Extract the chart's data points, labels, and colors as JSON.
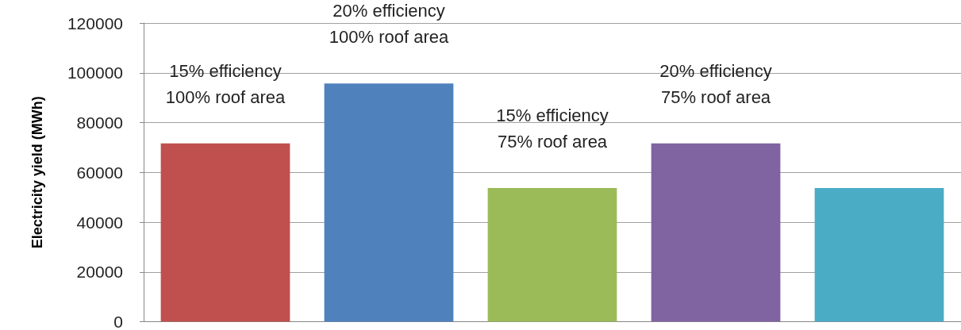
{
  "chart_data": {
    "type": "bar",
    "ylabel": "Electricity yield (MWh)",
    "categories": [
      null,
      null,
      null,
      null,
      null
    ],
    "values": [
      71600,
      95700,
      53700,
      71600,
      53700
    ],
    "colors": [
      "#c0504d",
      "#4f81bd",
      "#9bbb59",
      "#8064a2",
      "#4bacc6"
    ],
    "annotations": [
      {
        "text": "15% efficiency\n100% roof area",
        "y": 71600
      },
      {
        "text": "20% efficiency\n100% roof area",
        "y": 95700
      },
      {
        "text": "15% efficiency\n75% roof area",
        "y": 53700
      },
      {
        "text": "20% efficiency\n75% roof area",
        "y": 71600
      }
    ],
    "ylim": [
      0,
      120000
    ],
    "yticks": [
      0,
      20000,
      40000,
      60000,
      80000,
      100000,
      120000
    ],
    "grid": "y"
  }
}
